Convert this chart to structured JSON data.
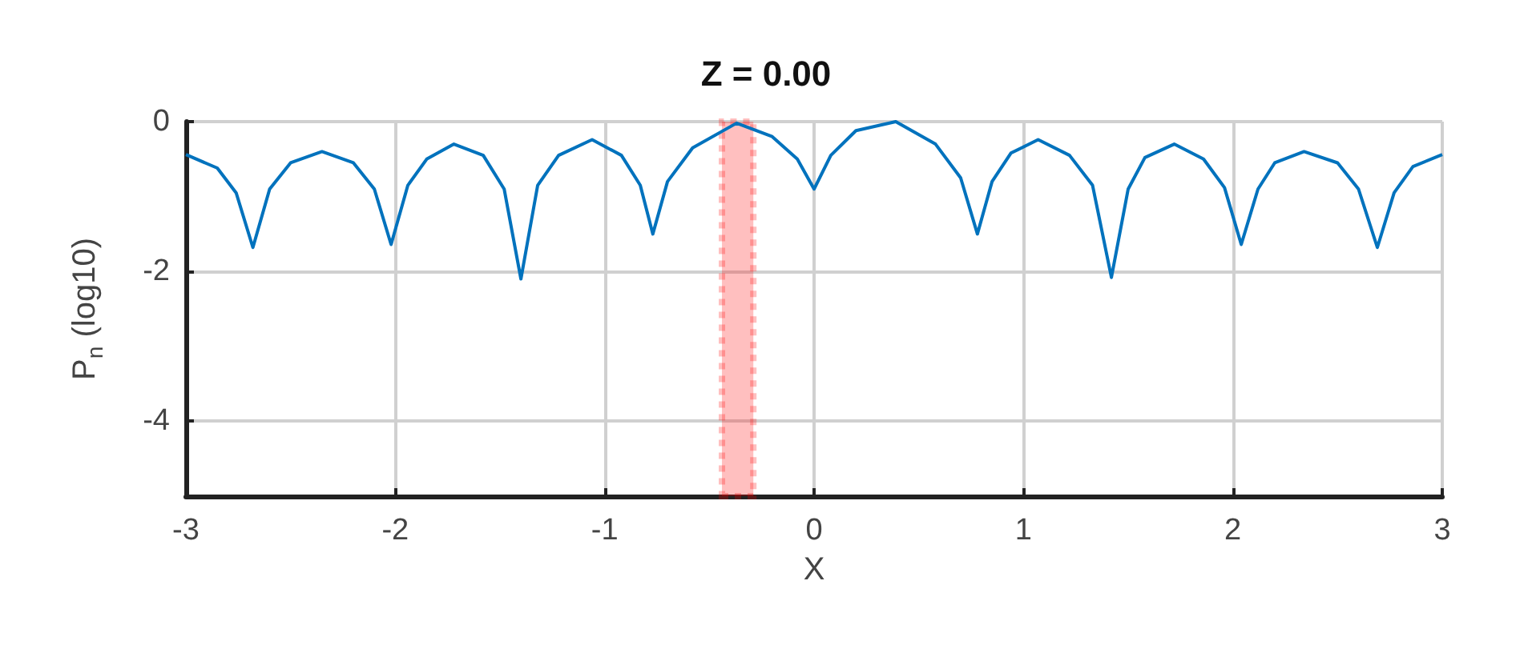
{
  "chart_data": {
    "type": "line",
    "title": "Z = 0.00",
    "xlabel": "X",
    "ylabel": "P$_{n}$ (log10)",
    "xlim": [
      -3,
      3
    ],
    "xticks": [
      -3,
      -2,
      -1,
      0,
      1,
      2,
      3
    ],
    "ylim": [
      -5,
      0
    ],
    "yticks": [
      -4,
      -2,
      0
    ],
    "grid": true,
    "marker": "none",
    "line_style": "solid",
    "bands": [
      {
        "axis": "x",
        "from": -0.44,
        "to": -0.29,
        "color": "#ff0000"
      }
    ],
    "series": [
      {
        "color": "#0072bd",
        "x": [
          -3,
          -2.85,
          -2.76,
          -2.68,
          -2.6,
          -2.5,
          -2.35,
          -2.2,
          -2.1,
          -2.02,
          -1.94,
          -1.85,
          -1.72,
          -1.58,
          -1.48,
          -1.4,
          -1.32,
          -1.22,
          -1.06,
          -0.92,
          -0.83,
          -0.77,
          -0.7,
          -0.58,
          -0.37,
          -0.2,
          -0.08,
          0,
          0.08,
          0.2,
          0.39,
          0.58,
          0.7,
          0.78,
          0.85,
          0.94,
          1.07,
          1.22,
          1.33,
          1.42,
          1.5,
          1.58,
          1.72,
          1.86,
          1.96,
          2.04,
          2.12,
          2.2,
          2.34,
          2.5,
          2.6,
          2.69,
          2.77,
          2.86,
          3
        ],
        "values": [
          -0.44,
          -0.62,
          -0.95,
          -1.68,
          -0.9,
          -0.55,
          -0.4,
          -0.55,
          -0.9,
          -1.64,
          -0.85,
          -0.5,
          -0.3,
          -0.45,
          -0.9,
          -2.1,
          -0.85,
          -0.45,
          -0.24,
          -0.45,
          -0.85,
          -1.5,
          -0.8,
          -0.35,
          -0.02,
          -0.2,
          -0.5,
          -0.9,
          -0.45,
          -0.12,
          0,
          -0.3,
          -0.75,
          -1.5,
          -0.8,
          -0.42,
          -0.24,
          -0.45,
          -0.85,
          -2.08,
          -0.9,
          -0.48,
          -0.3,
          -0.5,
          -0.88,
          -1.64,
          -0.9,
          -0.55,
          -0.4,
          -0.55,
          -0.9,
          -1.68,
          -0.95,
          -0.6,
          -0.44
        ]
      }
    ]
  }
}
